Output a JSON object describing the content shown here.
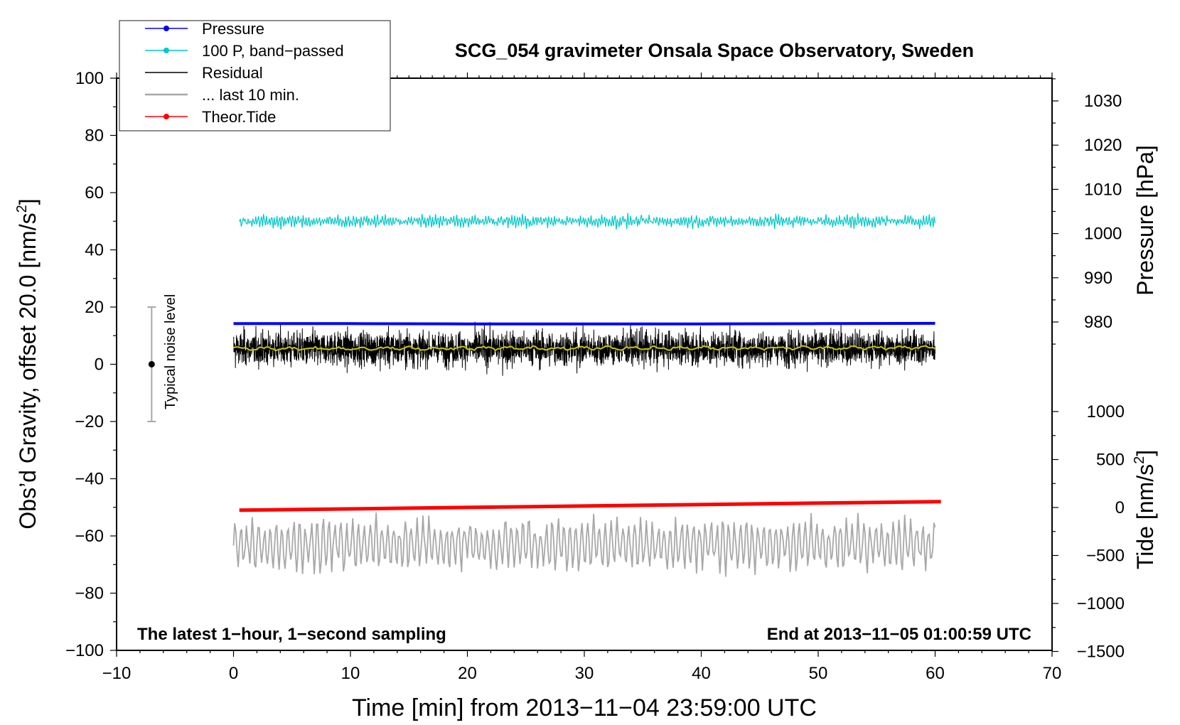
{
  "chart_data": {
    "type": "line",
    "title": "SCG_054 gravimeter Onsala Space Observatory, Sweden",
    "xlabel": "Time [min] from 2013−11−04 23:59:00 UTC",
    "ylabel_left": "Obs’d Gravity, offset 20.0 [nm/s",
    "ylabel_left_sup": "2",
    "ylabel_left_end": "]",
    "ylabel_right_pressure": "Pressure [hPa]",
    "ylabel_right_tide": "Tide [nm/s",
    "ylabel_right_tide_sup": "2",
    "ylabel_right_tide_end": "]",
    "note_left": "The latest 1−hour, 1−second sampling",
    "note_right": "End at 2013−11−05 01:00:59 UTC",
    "noise_label": "Typical noise level",
    "noise_bar": {
      "x": -7,
      "center": 0,
      "low": -20,
      "high": 20
    },
    "xlim": [
      -10,
      70
    ],
    "ylim_left": [
      -100,
      100
    ],
    "x_ticks": [
      -10,
      0,
      10,
      20,
      30,
      40,
      50,
      60,
      70
    ],
    "x_tick_labels": [
      "−10",
      "0",
      "10",
      "20",
      "30",
      "40",
      "50",
      "60",
      "70"
    ],
    "y_left_ticks": [
      -100,
      -80,
      -60,
      -40,
      -20,
      0,
      20,
      40,
      60,
      80,
      100
    ],
    "y_left_tick_labels": [
      "−100",
      "−80",
      "−60",
      "−40",
      "−20",
      "0",
      "20",
      "40",
      "60",
      "80",
      "100"
    ],
    "pressure_axis": {
      "ticks": [
        980,
        990,
        1000,
        1010,
        1020,
        1030
      ],
      "tick_labels": [
        "980",
        "990",
        "1000",
        "1010",
        "1020",
        "1030"
      ]
    },
    "tide_axis": {
      "ticks": [
        -1500,
        -1000,
        -500,
        0,
        500,
        1000
      ],
      "tick_labels": [
        "−1500",
        "−1000",
        "−500",
        "0",
        "500",
        "1000"
      ]
    },
    "legend": {
      "position": "top-left",
      "entries": [
        {
          "label": "Pressure",
          "color": "#0000ff",
          "marker": "dot"
        },
        {
          "label": "100 P, band−passed",
          "color": "#00c8c8",
          "marker": "dot"
        },
        {
          "label": "Residual",
          "color": "#000000",
          "marker": "none"
        },
        {
          "label": "... last 10 min.",
          "color": "#a8a8a8",
          "marker": "none"
        },
        {
          "label": "Theor.Tide",
          "color": "#ff0000",
          "marker": "dot"
        }
      ]
    },
    "series": [
      {
        "name": "Pressure",
        "color": "#0000ff",
        "x": [
          0,
          10,
          20,
          30,
          40,
          50,
          60
        ],
        "y": [
          14.2,
          14.2,
          14.1,
          14.1,
          14.1,
          14.2,
          14.3
        ]
      },
      {
        "name": "100 P, band−passed",
        "color": "#00c8c8",
        "mean": 50,
        "amplitude": 4,
        "x_range": [
          0.5,
          60
        ]
      },
      {
        "name": "Residual",
        "color": "#000000",
        "mean": 5.5,
        "amplitude": 13,
        "x_range": [
          0,
          60
        ]
      },
      {
        "name": "smoothed residual",
        "color": "#c8c800",
        "x": [
          0,
          60
        ],
        "y": [
          5.5,
          5.8
        ]
      },
      {
        "name": "... last 10 min.",
        "color": "#a8a8a8",
        "mean": -63,
        "amplitude": 10,
        "x_range": [
          0,
          60
        ]
      },
      {
        "name": "Theor.Tide",
        "color": "#ff0000",
        "x": [
          0.5,
          60.5
        ],
        "y": [
          -51,
          -48
        ]
      }
    ]
  }
}
